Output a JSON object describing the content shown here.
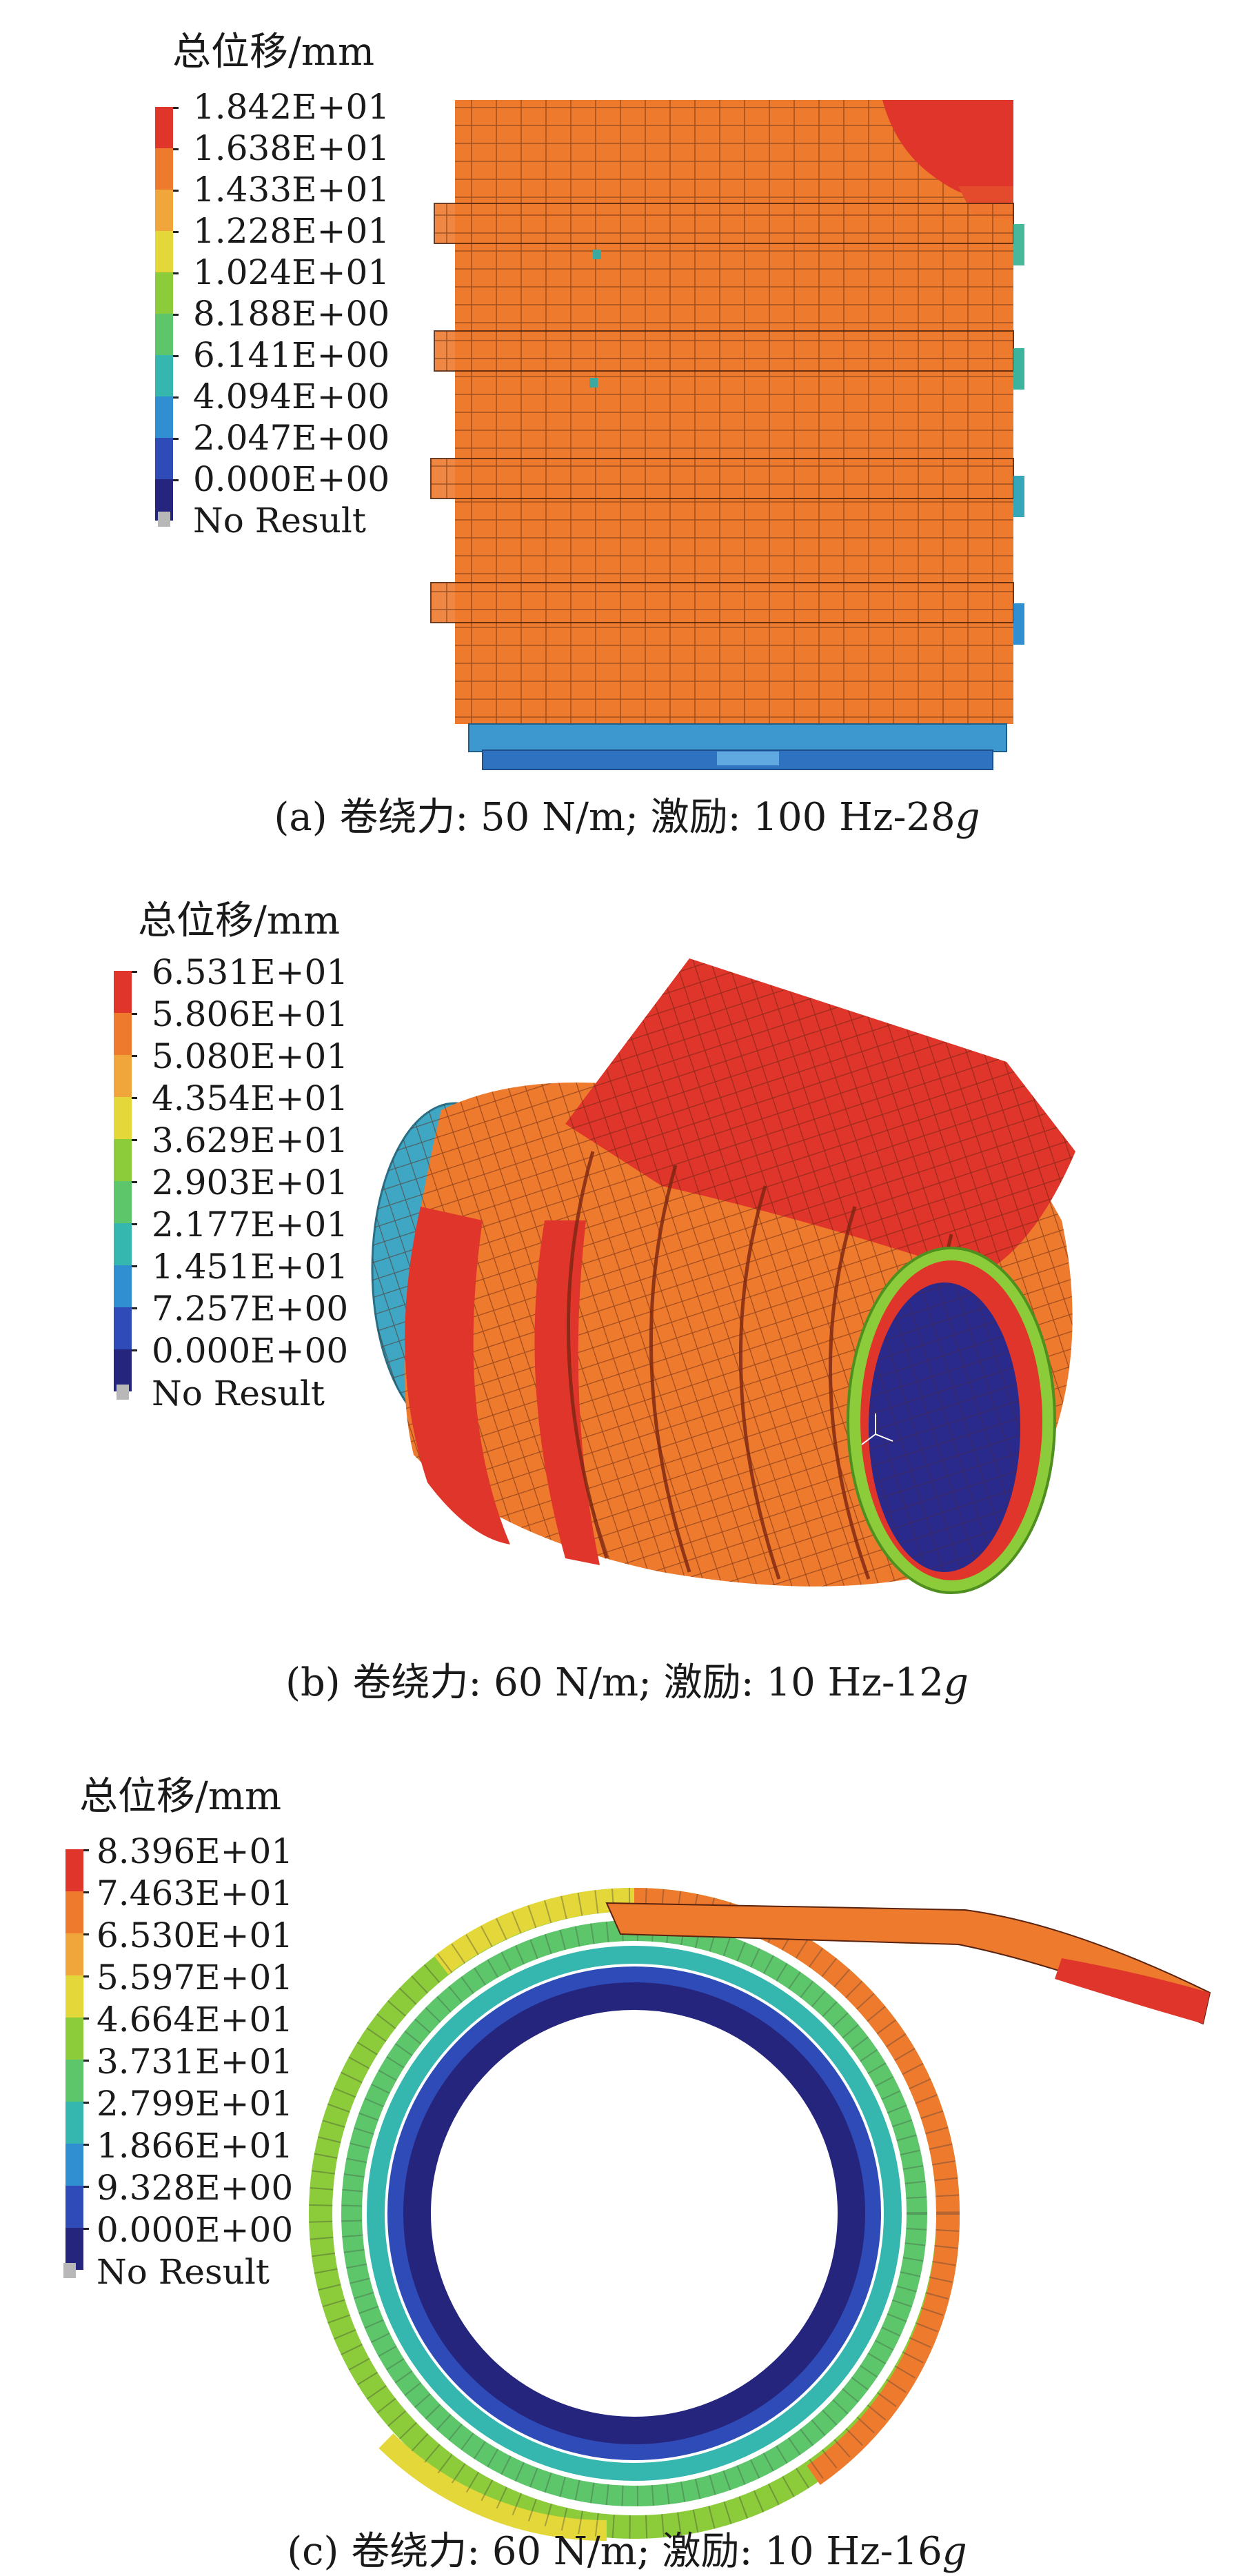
{
  "colors": {
    "scale": [
      "#25257d",
      "#2f4bb8",
      "#2f8fd0",
      "#35b7b0",
      "#5ec66a",
      "#8ccc3a",
      "#e3d73a",
      "#f0a63a",
      "#ee7a2e",
      "#e0352a"
    ],
    "orange": "#ee7a2e",
    "red": "#e0352a",
    "blue_dark": "#2a2a8c",
    "teal": "#3fa7c4",
    "noresult": "#b8b8b8"
  },
  "panels": [
    {
      "legend_title": "总位移/mm",
      "labels": [
        "1.842E+01",
        "1.638E+01",
        "1.433E+01",
        "1.228E+01",
        "1.024E+01",
        "8.188E+00",
        "6.141E+00",
        "4.094E+00",
        "2.047E+00",
        "0.000E+00"
      ],
      "no_result": "No Result",
      "caption_prefix": "(a) 卷绕力: 50 N/m; 激励: 100 Hz-28",
      "caption_g": "g"
    },
    {
      "legend_title": "总位移/mm",
      "labels": [
        "6.531E+01",
        "5.806E+01",
        "5.080E+01",
        "4.354E+01",
        "3.629E+01",
        "2.903E+01",
        "2.177E+01",
        "1.451E+01",
        "7.257E+00",
        "0.000E+00"
      ],
      "no_result": "No Result",
      "caption_prefix": "(b) 卷绕力: 60 N/m; 激励: 10 Hz-12",
      "caption_g": "g"
    },
    {
      "legend_title": "总位移/mm",
      "labels": [
        "8.396E+01",
        "7.463E+01",
        "6.530E+01",
        "5.597E+01",
        "4.664E+01",
        "3.731E+01",
        "2.799E+01",
        "1.866E+01",
        "9.328E+00",
        "0.000E+00"
      ],
      "no_result": "No Result",
      "caption_prefix": "(c) 卷绕力: 60 N/m; 激励: 10 Hz-16",
      "caption_g": "g"
    }
  ]
}
